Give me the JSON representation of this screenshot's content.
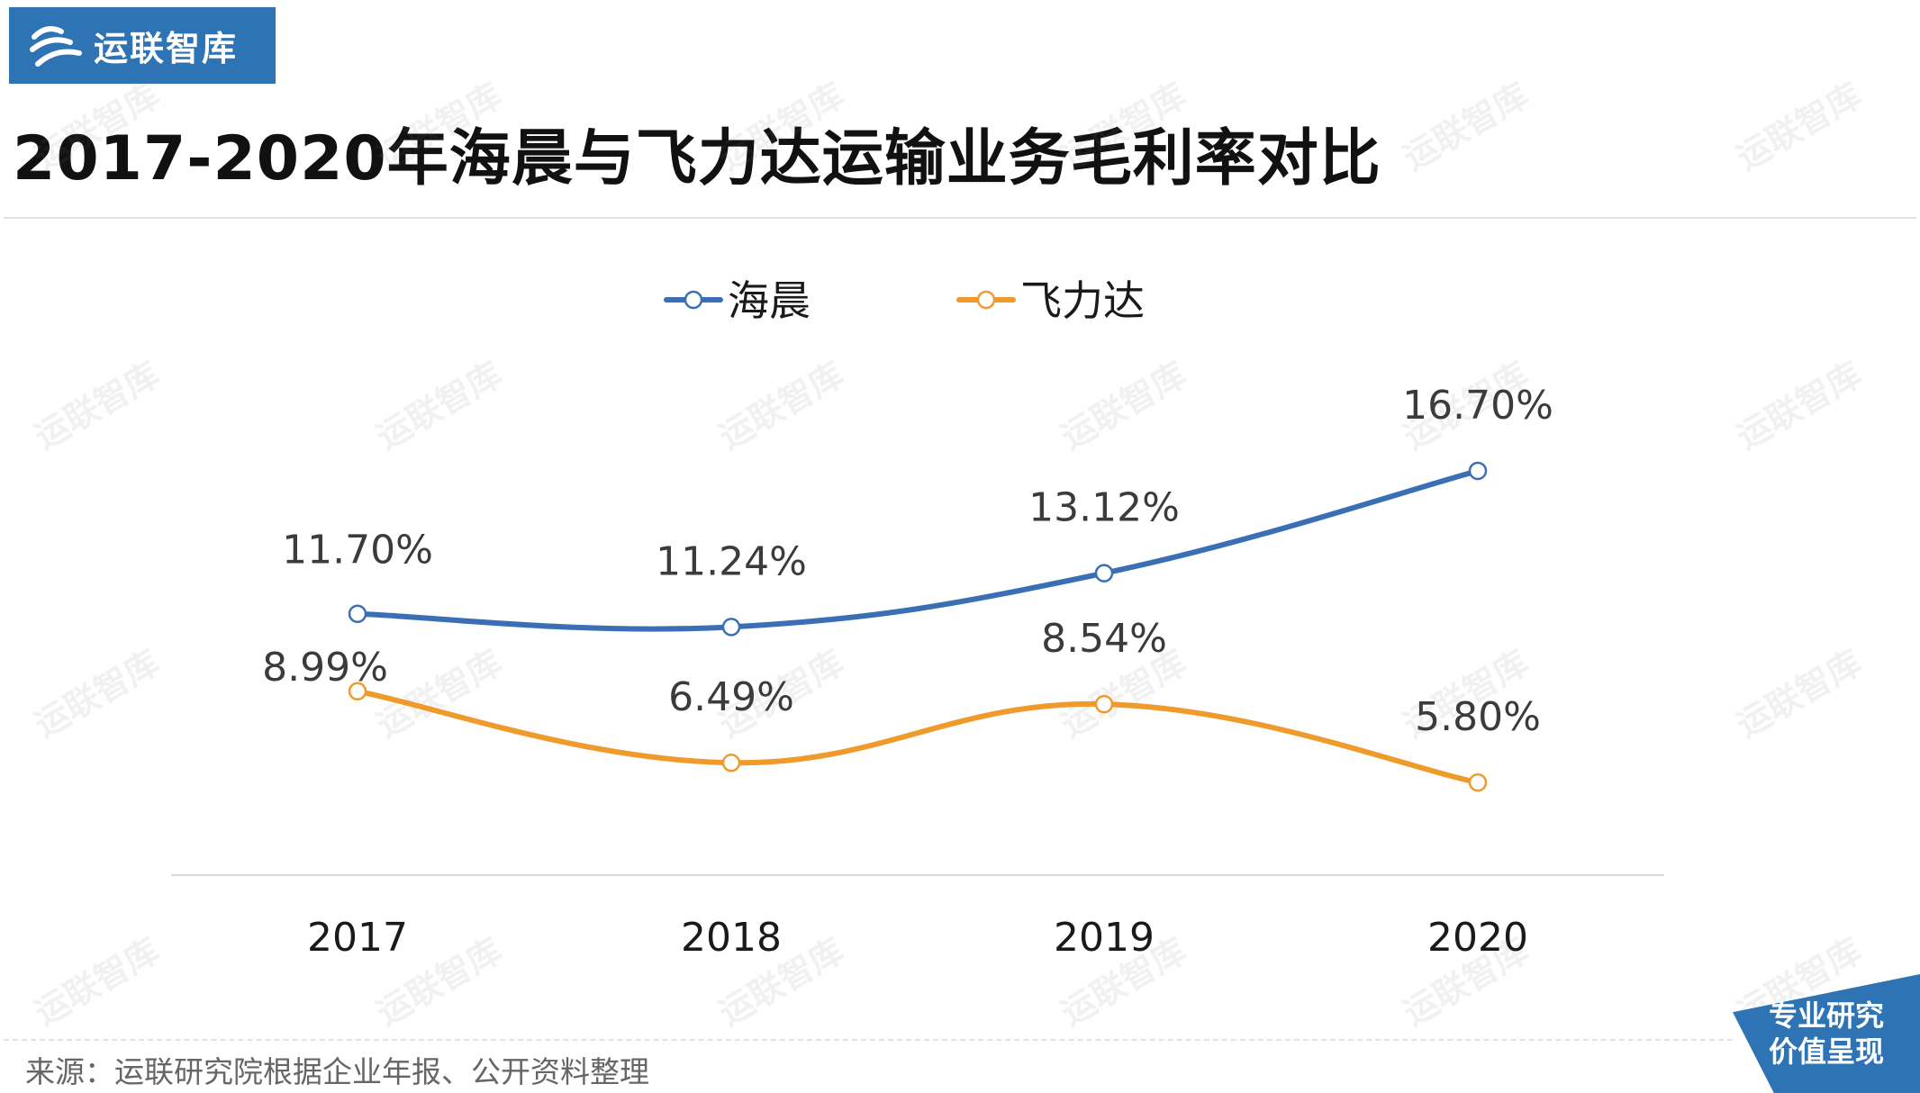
{
  "brand": {
    "logo_text": "运联智库",
    "badge_line1": "专业研究",
    "badge_line2": "价值呈现",
    "watermark_text": "运联智库",
    "color": "#2e74b5"
  },
  "source_text": "来源：运联研究院根据企业年报、公开资料整理",
  "chart_data": {
    "type": "line",
    "title": "2017-2020年海晨与飞力达运输业务毛利率对比",
    "categories": [
      "2017",
      "2018",
      "2019",
      "2020"
    ],
    "series": [
      {
        "name": "海晨",
        "color": "#3a6fb5",
        "values": [
          11.7,
          11.24,
          13.12,
          16.7
        ],
        "labels": [
          "11.70%",
          "11.24%",
          "13.12%",
          "16.70%"
        ]
      },
      {
        "name": "飞力达",
        "color": "#f09a2c",
        "values": [
          8.99,
          6.49,
          8.54,
          5.8
        ],
        "labels": [
          "8.99%",
          "6.49%",
          "8.54%",
          "5.80%"
        ]
      }
    ],
    "legend_position": "top-center",
    "grid": false,
    "y_axis_visible": false,
    "smooth": true
  }
}
